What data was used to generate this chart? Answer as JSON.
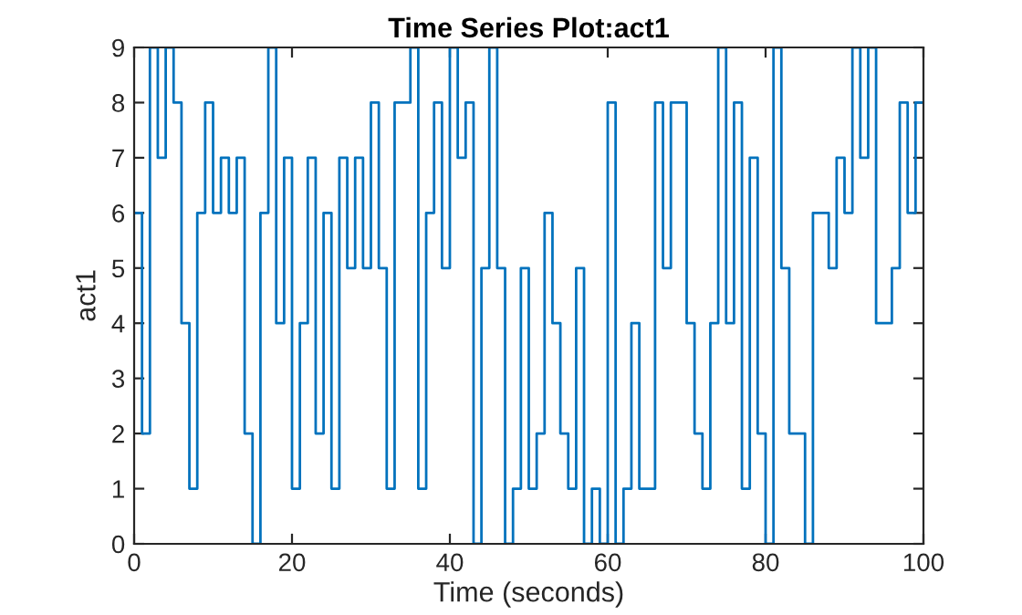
{
  "chart_data": {
    "type": "step",
    "title": "Time Series Plot:act1",
    "xlabel": "Time (seconds)",
    "ylabel": "act1",
    "x": [
      0,
      1,
      2,
      3,
      4,
      5,
      6,
      7,
      8,
      9,
      10,
      11,
      12,
      13,
      14,
      15,
      16,
      17,
      18,
      19,
      20,
      21,
      22,
      23,
      24,
      25,
      26,
      27,
      28,
      29,
      30,
      31,
      32,
      33,
      34,
      35,
      36,
      37,
      38,
      39,
      40,
      41,
      42,
      43,
      44,
      45,
      46,
      47,
      48,
      49,
      50,
      51,
      52,
      53,
      54,
      55,
      56,
      57,
      58,
      59,
      60,
      61,
      62,
      63,
      64,
      65,
      66,
      67,
      68,
      69,
      70,
      71,
      72,
      73,
      74,
      75,
      76,
      77,
      78,
      79,
      80,
      81,
      82,
      83,
      84,
      85,
      86,
      87,
      88,
      89,
      90,
      91,
      92,
      93,
      94,
      95,
      96,
      97,
      98,
      99,
      100
    ],
    "series": [
      {
        "color": "#0072bd",
        "values": [
          6,
          2,
          9,
          7,
          9,
          8,
          4,
          1,
          6,
          8,
          6,
          7,
          6,
          7,
          2,
          0,
          6,
          9,
          4,
          7,
          1,
          4,
          7,
          2,
          6,
          1,
          7,
          5,
          7,
          5,
          8,
          5,
          1,
          8,
          8,
          9,
          1,
          6,
          8,
          5,
          9,
          7,
          8,
          0,
          5,
          9,
          5,
          0,
          1,
          5,
          1,
          2,
          6,
          4,
          2,
          1,
          5,
          0,
          1,
          0,
          8,
          0,
          1,
          4,
          1,
          1,
          8,
          5,
          8,
          8,
          4,
          2,
          1,
          4,
          9,
          4,
          8,
          1,
          7,
          2,
          0,
          9,
          5,
          2,
          2,
          0,
          6,
          6,
          5,
          7,
          6,
          9,
          7,
          9,
          4,
          4,
          5,
          8,
          6,
          8,
          8
        ]
      }
    ],
    "xlim": [
      0,
      100
    ],
    "ylim": [
      0,
      9
    ],
    "xticks": [
      0,
      20,
      40,
      60,
      80,
      100
    ],
    "yticks": [
      0,
      1,
      2,
      3,
      4,
      5,
      6,
      7,
      8,
      9
    ],
    "grid": false,
    "legend": false
  }
}
